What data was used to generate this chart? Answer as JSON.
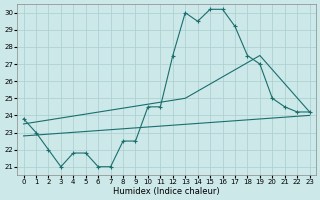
{
  "xlabel": "Humidex (Indice chaleur)",
  "bg_color": "#cce8e8",
  "line_color": "#1a6e6e",
  "grid_color": "#aacece",
  "xlim": [
    -0.5,
    23.5
  ],
  "ylim": [
    20.5,
    30.5
  ],
  "xticks": [
    0,
    1,
    2,
    3,
    4,
    5,
    6,
    7,
    8,
    9,
    10,
    11,
    12,
    13,
    14,
    15,
    16,
    17,
    18,
    19,
    20,
    21,
    22,
    23
  ],
  "yticks": [
    21,
    22,
    23,
    24,
    25,
    26,
    27,
    28,
    29,
    30
  ],
  "curve1_x": [
    0,
    1,
    2,
    3,
    4,
    5,
    6,
    7,
    8,
    9,
    10,
    11,
    12,
    13,
    14,
    15,
    16,
    17,
    18,
    19,
    20,
    21,
    22,
    23
  ],
  "curve1_y": [
    23.8,
    23.0,
    22.0,
    21.0,
    21.8,
    21.8,
    21.0,
    21.0,
    22.5,
    22.5,
    24.5,
    24.5,
    27.5,
    30.0,
    29.5,
    30.2,
    30.2,
    29.2,
    27.5,
    27.0,
    25.0,
    24.5,
    24.2,
    24.2
  ],
  "curve2_x": [
    0,
    13,
    19,
    23
  ],
  "curve2_y": [
    23.5,
    25.0,
    27.5,
    24.2
  ],
  "curve3_x": [
    0,
    23
  ],
  "curve3_y": [
    22.8,
    24.0
  ]
}
